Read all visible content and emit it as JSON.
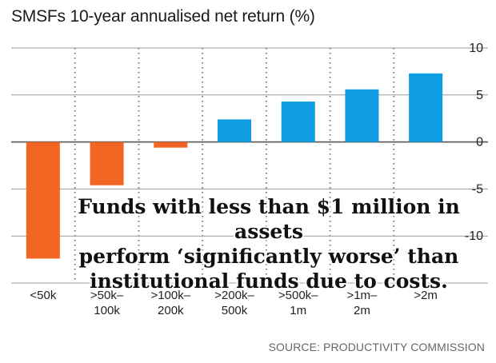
{
  "title": "SMSFs 10-year annualised net return (%)",
  "annotation": {
    "lines": [
      "Funds with less than $1 million in assets",
      "perform ‘significantly worse’ than",
      "institutional funds due to costs."
    ]
  },
  "source": "SOURCE: PRODUCTIVITY COMMISSION",
  "colors": {
    "negative": "#f26522",
    "positive": "#0e9de0",
    "grid": "#888888"
  },
  "chart_data": {
    "type": "bar",
    "categories": [
      [
        "<50k"
      ],
      [
        ">50k–",
        "100k"
      ],
      [
        ">100k–",
        "200k"
      ],
      [
        ">200k–",
        "500k"
      ],
      [
        ">500k–",
        "1m"
      ],
      [
        ">1m–",
        "2m"
      ],
      [
        ">2m"
      ]
    ],
    "values": [
      -12.4,
      -4.6,
      -0.6,
      2.4,
      4.3,
      5.6,
      7.3
    ],
    "y_ticks": [
      10,
      5,
      0,
      -5,
      -10
    ],
    "ylim": [
      -15,
      10
    ],
    "title": "SMSFs 10-year annualised net return (%)",
    "xlabel": "",
    "ylabel": "",
    "grid": true,
    "y_axis_side": "right"
  }
}
